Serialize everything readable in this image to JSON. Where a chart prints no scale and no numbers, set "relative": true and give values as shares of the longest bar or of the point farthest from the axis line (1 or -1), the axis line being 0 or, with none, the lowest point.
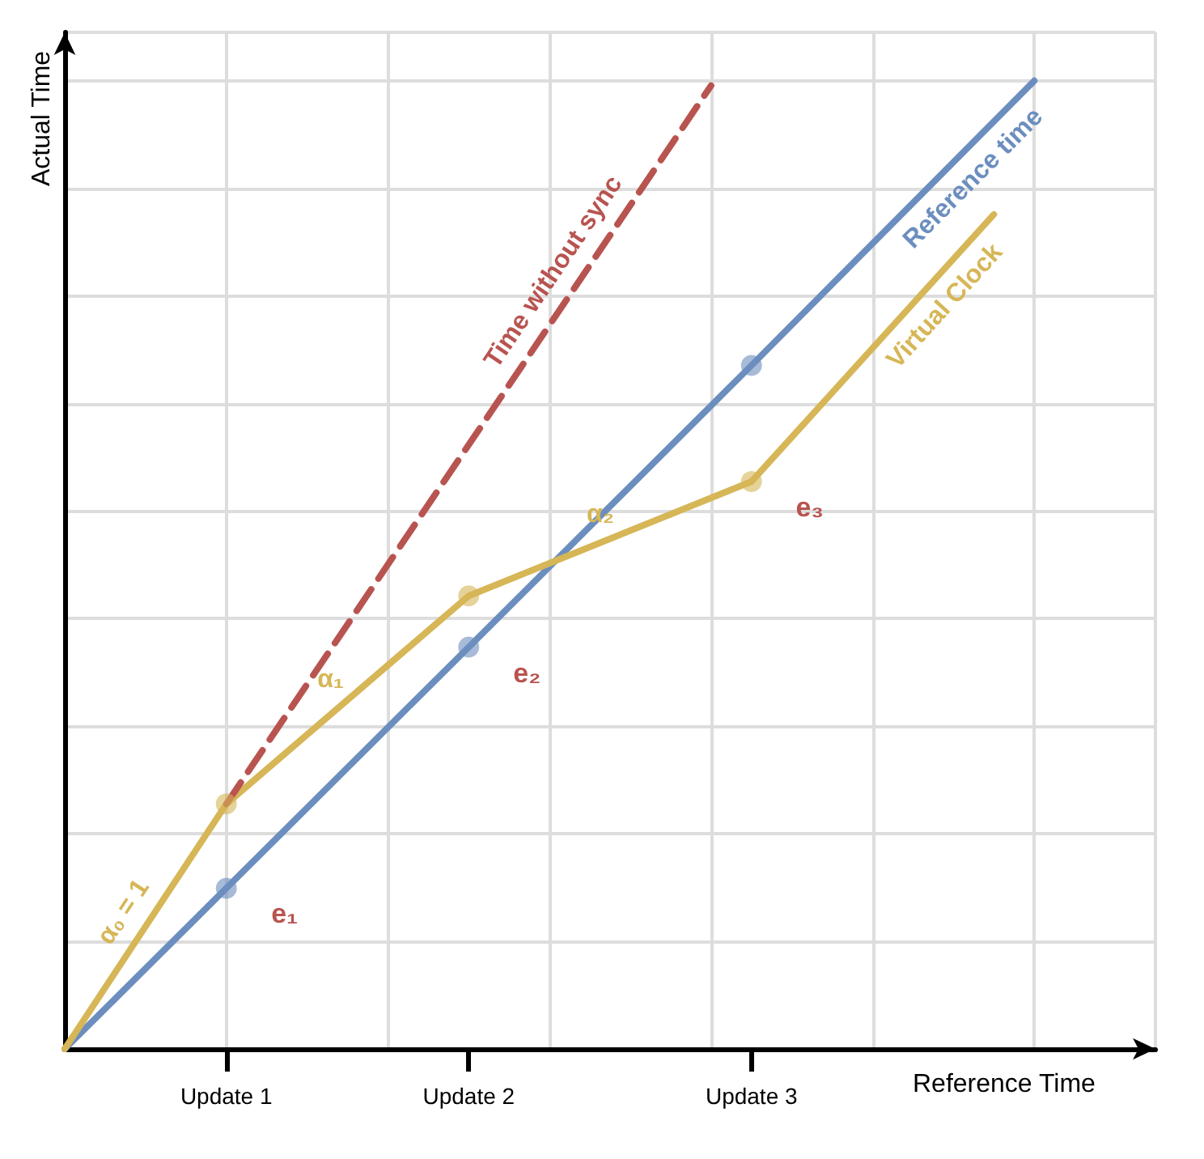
{
  "chart_data": {
    "type": "line",
    "relative": true,
    "xlabel": "Reference Time",
    "ylabel": "Actual Time",
    "categories": [
      null,
      null,
      null,
      null,
      "Update 1",
      null,
      null,
      null,
      null,
      null,
      "Update 2",
      null,
      null,
      null,
      null,
      null,
      null,
      "Update 3",
      null,
      null,
      null,
      null,
      null,
      null,
      null,
      null,
      null,
      null
    ],
    "grid": true,
    "legend": false,
    "series": [
      {
        "name": "Reference time",
        "color": "#6c8ebf",
        "values": [
          0,
          null,
          null,
          null,
          0.166,
          null,
          null,
          null,
          null,
          null,
          0.415,
          null,
          null,
          null,
          null,
          null,
          null,
          0.706,
          null,
          null,
          null,
          null,
          null,
          null,
          1,
          null,
          null,
          null
        ],
        "marker": "circle",
        "line_style": "solid"
      },
      {
        "name": "Virtual Clock",
        "color": "#d6b656",
        "values": [
          0,
          null,
          null,
          null,
          0.253,
          null,
          null,
          null,
          null,
          null,
          0.468,
          null,
          null,
          null,
          null,
          null,
          null,
          0.586,
          null,
          null,
          null,
          null,
          null,
          0.862,
          null,
          null,
          null,
          null
        ],
        "marker": "circle",
        "line_style": "solid"
      },
      {
        "name": "Time without sync",
        "color": "#b85450",
        "values": [
          null,
          null,
          null,
          null,
          0.253,
          null,
          null,
          null,
          null,
          null,
          null,
          null,
          null,
          null,
          null,
          null,
          0.995,
          null,
          null,
          null,
          null,
          null,
          null,
          null,
          null,
          null,
          null,
          null
        ],
        "marker": "none",
        "line_style": "dashed"
      }
    ],
    "annotations": [
      "α₀ = 1",
      "α₁",
      "α₂",
      {
        "text": "e₁",
        "x": "Update 1",
        "y": 0.166
      },
      {
        "text": "e₂",
        "x": "Update 2",
        "y": 0.415
      },
      {
        "text": "e₃",
        "x": "Update 3",
        "y": 0.586
      }
    ]
  }
}
